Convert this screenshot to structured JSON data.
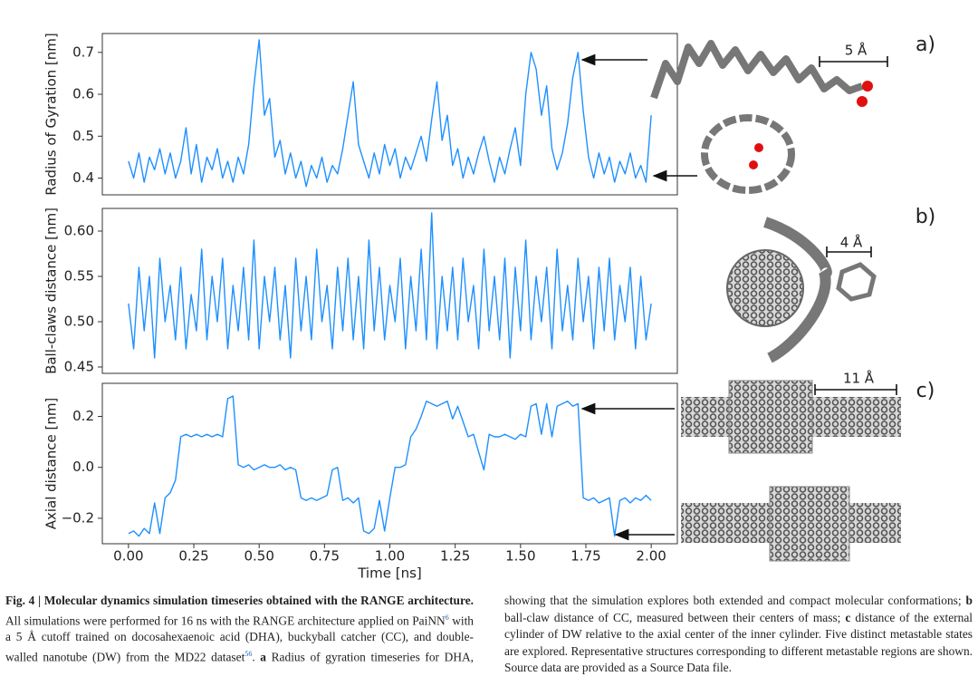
{
  "chart_data": [
    {
      "type": "line",
      "ylabel": "Radius of Gyration [nm]",
      "color": "#1e90ff",
      "xlim": [
        -0.1,
        2.1
      ],
      "ylim": [
        0.36,
        0.745
      ],
      "yticks": [
        0.4,
        0.5,
        0.6,
        0.7
      ],
      "x": [
        0,
        0.02,
        0.04,
        0.06,
        0.08,
        0.1,
        0.12,
        0.14,
        0.16,
        0.18,
        0.2,
        0.22,
        0.24,
        0.26,
        0.28,
        0.3,
        0.32,
        0.34,
        0.36,
        0.38,
        0.4,
        0.42,
        0.44,
        0.46,
        0.48,
        0.5,
        0.52,
        0.54,
        0.56,
        0.58,
        0.6,
        0.62,
        0.64,
        0.66,
        0.68,
        0.7,
        0.72,
        0.74,
        0.76,
        0.78,
        0.8,
        0.82,
        0.84,
        0.86,
        0.88,
        0.9,
        0.92,
        0.94,
        0.96,
        0.98,
        1,
        1.02,
        1.04,
        1.06,
        1.08,
        1.1,
        1.12,
        1.14,
        1.16,
        1.18,
        1.2,
        1.22,
        1.24,
        1.26,
        1.28,
        1.3,
        1.32,
        1.34,
        1.36,
        1.38,
        1.4,
        1.42,
        1.44,
        1.46,
        1.48,
        1.5,
        1.52,
        1.54,
        1.56,
        1.58,
        1.6,
        1.62,
        1.64,
        1.66,
        1.68,
        1.7,
        1.72,
        1.74,
        1.76,
        1.78,
        1.8,
        1.82,
        1.84,
        1.86,
        1.88,
        1.9,
        1.92,
        1.94,
        1.96,
        1.98,
        2
      ],
      "values": [
        0.44,
        0.4,
        0.46,
        0.39,
        0.45,
        0.42,
        0.47,
        0.41,
        0.46,
        0.4,
        0.44,
        0.52,
        0.41,
        0.48,
        0.39,
        0.45,
        0.42,
        0.47,
        0.4,
        0.44,
        0.39,
        0.45,
        0.41,
        0.48,
        0.62,
        0.73,
        0.55,
        0.59,
        0.45,
        0.49,
        0.41,
        0.46,
        0.4,
        0.44,
        0.38,
        0.43,
        0.4,
        0.45,
        0.39,
        0.43,
        0.41,
        0.47,
        0.55,
        0.63,
        0.48,
        0.44,
        0.4,
        0.46,
        0.41,
        0.48,
        0.43,
        0.47,
        0.4,
        0.45,
        0.42,
        0.46,
        0.5,
        0.44,
        0.54,
        0.63,
        0.49,
        0.55,
        0.43,
        0.47,
        0.4,
        0.45,
        0.41,
        0.46,
        0.5,
        0.44,
        0.39,
        0.45,
        0.41,
        0.47,
        0.52,
        0.43,
        0.6,
        0.7,
        0.66,
        0.55,
        0.62,
        0.47,
        0.42,
        0.46,
        0.53,
        0.64,
        0.7,
        0.56,
        0.45,
        0.4,
        0.46,
        0.41,
        0.45,
        0.39,
        0.44,
        0.41,
        0.46,
        0.4,
        0.43,
        0.39,
        0.55
      ]
    },
    {
      "type": "line",
      "ylabel": "Ball-claws distance [nm]",
      "color": "#1e90ff",
      "xlim": [
        -0.1,
        2.1
      ],
      "ylim": [
        0.443,
        0.625
      ],
      "yticks": [
        {
          "value": 0.45,
          "label": "0.45"
        },
        {
          "value": 0.5,
          "label": "0.50"
        },
        {
          "value": 0.55,
          "label": "0.55"
        },
        {
          "value": 0.6,
          "label": "0.60"
        }
      ],
      "x": [
        0,
        0.02,
        0.04,
        0.06,
        0.08,
        0.1,
        0.12,
        0.14,
        0.16,
        0.18,
        0.2,
        0.22,
        0.24,
        0.26,
        0.28,
        0.3,
        0.32,
        0.34,
        0.36,
        0.38,
        0.4,
        0.42,
        0.44,
        0.46,
        0.48,
        0.5,
        0.52,
        0.54,
        0.56,
        0.58,
        0.6,
        0.62,
        0.64,
        0.66,
        0.68,
        0.7,
        0.72,
        0.74,
        0.76,
        0.78,
        0.8,
        0.82,
        0.84,
        0.86,
        0.88,
        0.9,
        0.92,
        0.94,
        0.96,
        0.98,
        1,
        1.02,
        1.04,
        1.06,
        1.08,
        1.1,
        1.12,
        1.14,
        1.16,
        1.18,
        1.2,
        1.22,
        1.24,
        1.26,
        1.28,
        1.3,
        1.32,
        1.34,
        1.36,
        1.38,
        1.4,
        1.42,
        1.44,
        1.46,
        1.48,
        1.5,
        1.52,
        1.54,
        1.56,
        1.58,
        1.6,
        1.62,
        1.64,
        1.66,
        1.68,
        1.7,
        1.72,
        1.74,
        1.76,
        1.78,
        1.8,
        1.82,
        1.84,
        1.86,
        1.88,
        1.9,
        1.92,
        1.94,
        1.96,
        1.98,
        2
      ],
      "values": [
        0.52,
        0.47,
        0.56,
        0.49,
        0.55,
        0.46,
        0.57,
        0.5,
        0.54,
        0.48,
        0.56,
        0.47,
        0.53,
        0.49,
        0.58,
        0.48,
        0.55,
        0.5,
        0.57,
        0.47,
        0.54,
        0.49,
        0.56,
        0.48,
        0.59,
        0.47,
        0.55,
        0.5,
        0.56,
        0.48,
        0.54,
        0.46,
        0.57,
        0.49,
        0.55,
        0.48,
        0.58,
        0.5,
        0.54,
        0.47,
        0.56,
        0.49,
        0.57,
        0.48,
        0.55,
        0.47,
        0.59,
        0.49,
        0.56,
        0.48,
        0.54,
        0.5,
        0.57,
        0.47,
        0.55,
        0.49,
        0.58,
        0.48,
        0.62,
        0.47,
        0.55,
        0.49,
        0.56,
        0.48,
        0.57,
        0.5,
        0.54,
        0.47,
        0.58,
        0.49,
        0.55,
        0.48,
        0.57,
        0.46,
        0.56,
        0.49,
        0.59,
        0.48,
        0.55,
        0.5,
        0.56,
        0.47,
        0.58,
        0.49,
        0.54,
        0.48,
        0.57,
        0.5,
        0.55,
        0.47,
        0.56,
        0.49,
        0.57,
        0.48,
        0.54,
        0.5,
        0.56,
        0.47,
        0.55,
        0.48,
        0.52
      ]
    },
    {
      "type": "line",
      "ylabel": "Axial distance [nm]",
      "xlabel": "Time [ns]",
      "color": "#1e90ff",
      "xlim": [
        -0.1,
        2.1
      ],
      "ylim": [
        -0.3,
        0.33
      ],
      "yticks": [
        {
          "value": -0.2,
          "label": "−0.2"
        },
        {
          "value": 0,
          "label": "0.0"
        },
        {
          "value": 0.2,
          "label": "0.2"
        }
      ],
      "xticks": [
        {
          "value": 0,
          "label": "0.00"
        },
        {
          "value": 0.25,
          "label": "0.25"
        },
        {
          "value": 0.5,
          "label": "0.50"
        },
        {
          "value": 0.75,
          "label": "0.75"
        },
        {
          "value": 1,
          "label": "1.00"
        },
        {
          "value": 1.25,
          "label": "1.25"
        },
        {
          "value": 1.5,
          "label": "1.50"
        },
        {
          "value": 1.75,
          "label": "1.75"
        },
        {
          "value": 2,
          "label": "2.00"
        }
      ],
      "x": [
        0,
        0.02,
        0.04,
        0.06,
        0.08,
        0.1,
        0.12,
        0.14,
        0.16,
        0.18,
        0.2,
        0.22,
        0.24,
        0.26,
        0.28,
        0.3,
        0.32,
        0.34,
        0.36,
        0.38,
        0.4,
        0.42,
        0.44,
        0.46,
        0.48,
        0.5,
        0.52,
        0.54,
        0.56,
        0.58,
        0.6,
        0.62,
        0.64,
        0.66,
        0.68,
        0.7,
        0.72,
        0.74,
        0.76,
        0.78,
        0.8,
        0.82,
        0.84,
        0.86,
        0.88,
        0.9,
        0.92,
        0.94,
        0.96,
        0.98,
        1,
        1.02,
        1.04,
        1.06,
        1.08,
        1.1,
        1.12,
        1.14,
        1.16,
        1.18,
        1.2,
        1.22,
        1.24,
        1.26,
        1.28,
        1.3,
        1.32,
        1.34,
        1.36,
        1.38,
        1.4,
        1.42,
        1.44,
        1.46,
        1.48,
        1.5,
        1.52,
        1.54,
        1.56,
        1.58,
        1.6,
        1.62,
        1.64,
        1.66,
        1.68,
        1.7,
        1.72,
        1.74,
        1.76,
        1.78,
        1.8,
        1.82,
        1.84,
        1.86,
        1.88,
        1.9,
        1.92,
        1.94,
        1.96,
        1.98,
        2
      ],
      "values": [
        -0.26,
        -0.25,
        -0.27,
        -0.24,
        -0.26,
        -0.14,
        -0.26,
        -0.12,
        -0.1,
        -0.05,
        0.12,
        0.13,
        0.12,
        0.13,
        0.12,
        0.13,
        0.12,
        0.13,
        0.12,
        0.27,
        0.28,
        0.01,
        0.0,
        0.01,
        -0.01,
        0.0,
        0.01,
        0.0,
        0.0,
        0.01,
        -0.01,
        0.0,
        -0.01,
        -0.12,
        -0.13,
        -0.12,
        -0.13,
        -0.12,
        -0.11,
        -0.01,
        0.0,
        -0.13,
        -0.12,
        -0.14,
        -0.12,
        -0.25,
        -0.26,
        -0.24,
        -0.13,
        -0.25,
        -0.12,
        0.0,
        0.0,
        0.01,
        0.12,
        0.15,
        0.2,
        0.26,
        0.25,
        0.24,
        0.25,
        0.26,
        0.19,
        0.24,
        0.18,
        0.12,
        0.13,
        0.06,
        -0.01,
        0.13,
        0.12,
        0.12,
        0.13,
        0.12,
        0.11,
        0.13,
        0.12,
        0.24,
        0.25,
        0.13,
        0.25,
        0.12,
        0.24,
        0.25,
        0.26,
        0.24,
        0.25,
        -0.12,
        -0.13,
        -0.12,
        -0.14,
        -0.13,
        -0.12,
        -0.27,
        -0.13,
        -0.12,
        -0.14,
        -0.12,
        -0.13,
        -0.11,
        -0.13
      ]
    }
  ],
  "panel_labels": [
    "a)",
    "b)",
    "c)"
  ],
  "scale_bars": [
    "5 Å",
    "4 Å",
    "11 Å"
  ],
  "caption": {
    "segments": [
      "Fig. 4 | Molecular dynamics simulation timeseries obtained with the RANGE architecture.",
      " All simulations were performed for 16 ns with the RANGE architecture applied on PaiNN",
      "6",
      " with a 5 Å cutoff trained on docosahexaenoic acid (DHA), buckyball catcher (CC), and double-walled nanotube (DW) from the MD22 dataset",
      "56",
      ". ",
      "a",
      " Radius of gyration timeseries for DHA, showing that the simulation explores both extended and compact molecular conformations; ",
      "b",
      " ball-claw distance of CC, measured between their centers of mass; ",
      "c",
      " distance of the external cylinder of DW relative to the axial center of the inner cylinder. Five distinct metastable states are explored. Representative structures corresponding to different metastable regions are shown. Source data are provided as a Source Data file."
    ]
  }
}
